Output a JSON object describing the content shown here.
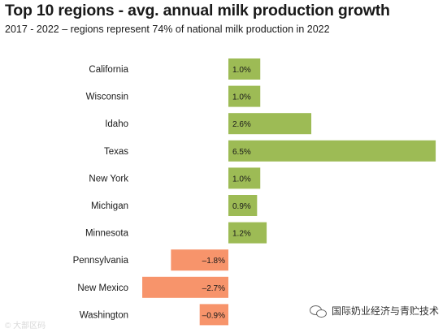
{
  "header": {
    "title": "Top 10 regions - avg. annual milk production growth",
    "subtitle": "2017 - 2022 – regions represent 74% of national milk production in 2022"
  },
  "colors": {
    "positive": "#9dbb55",
    "negative": "#f7946b"
  },
  "chart_data": {
    "type": "bar",
    "orientation": "horizontal",
    "categories": [
      "California",
      "Wisconsin",
      "Idaho",
      "Texas",
      "New York",
      "Michigan",
      "Minnesota",
      "Pennsylvania",
      "New Mexico",
      "Washington"
    ],
    "values": [
      1.0,
      1.0,
      2.6,
      6.5,
      1.0,
      0.9,
      1.2,
      -1.8,
      -2.7,
      -0.9
    ],
    "value_labels": [
      "1.0%",
      "1.0%",
      "2.6%",
      "6.5%",
      "1.0%",
      "0.9%",
      "1.2%",
      "–1.8%",
      "–2.7%",
      "–0.9%"
    ],
    "unit": "%",
    "xlim": [
      -2.8,
      6.6
    ],
    "title": "Top 10 regions - avg. annual milk production growth",
    "subtitle": "2017 - 2022 – regions represent 74% of national milk production in 2022",
    "grid": false
  },
  "watermarks": {
    "left": "© 大部区码",
    "right": "国际奶业经济与青贮技术"
  }
}
